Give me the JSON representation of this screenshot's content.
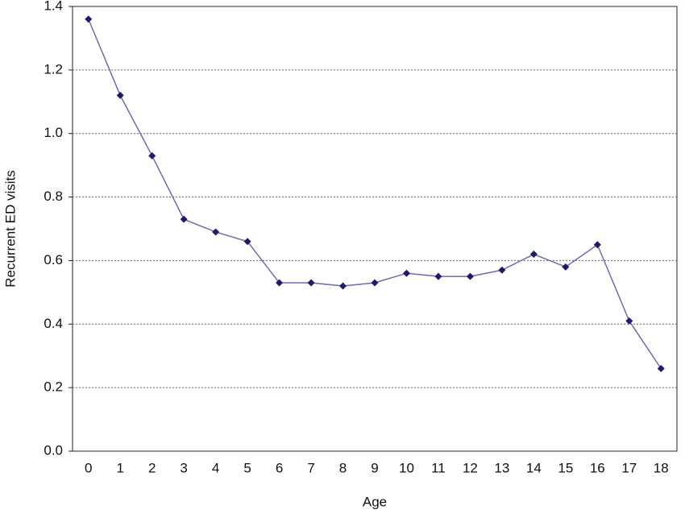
{
  "chart_data": {
    "type": "line",
    "x_label": "Age",
    "y_label": "Recurrent ED visits",
    "categories": [
      "0",
      "1",
      "2",
      "3",
      "4",
      "5",
      "6",
      "7",
      "8",
      "9",
      "10",
      "11",
      "12",
      "13",
      "14",
      "15",
      "16",
      "17",
      "18"
    ],
    "values": [
      1.36,
      1.12,
      0.93,
      0.73,
      0.69,
      0.66,
      0.53,
      0.53,
      0.52,
      0.53,
      0.56,
      0.55,
      0.55,
      0.57,
      0.62,
      0.58,
      0.65,
      0.41,
      0.26
    ],
    "color": "#6b6bb0",
    "marker_color": "#1c1c6b",
    "ylim": [
      0,
      1.4
    ],
    "yticks": [
      {
        "value": 0,
        "label": "0.0"
      },
      0.2,
      0.4,
      0.6,
      0.8,
      {
        "value": 1,
        "label": "1.0"
      },
      1.2,
      1.4
    ],
    "grid": true
  }
}
